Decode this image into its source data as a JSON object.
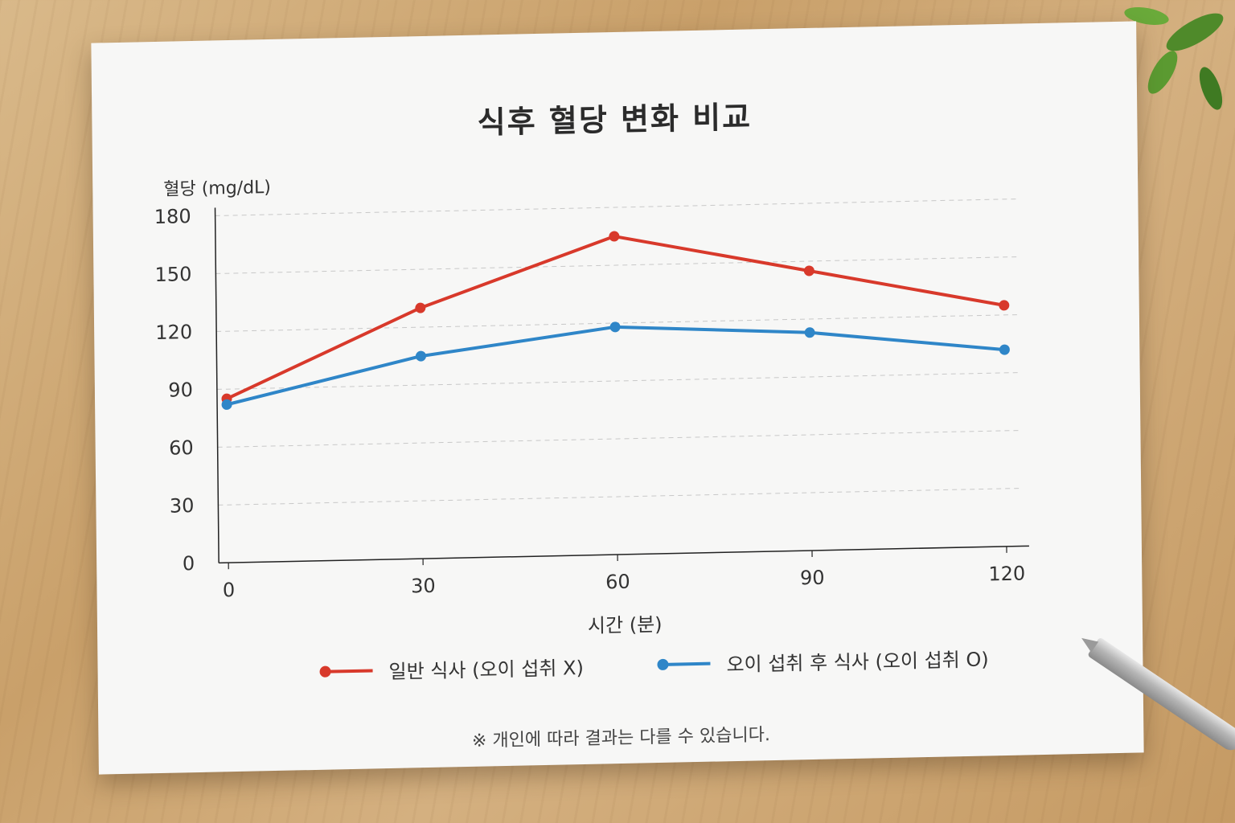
{
  "chart_data": {
    "type": "line",
    "title": "식후 혈당 변화 비교",
    "ylabel": "혈당 (mg/dL)",
    "xlabel": "시간 (분)",
    "x": [
      0,
      30,
      60,
      90,
      120
    ],
    "x_ticks": [
      "0",
      "30",
      "60",
      "90",
      "120"
    ],
    "y_ticks": [
      "0",
      "30",
      "60",
      "90",
      "120",
      "150",
      "180"
    ],
    "ylim": [
      0,
      180
    ],
    "xlim": [
      0,
      120
    ],
    "grid": true,
    "legend_position": "bottom",
    "series": [
      {
        "name": "일반 식사 (오이 섭취 X)",
        "color": "#d8392b",
        "values": [
          85,
          130,
          165,
          145,
          125
        ]
      },
      {
        "name": "오이 섭취 후 식사 (오이 섭취 O)",
        "color": "#2f86c8",
        "values": [
          82,
          105,
          118,
          113,
          102
        ]
      }
    ],
    "note": "※ 개인에 따라 결과는 다를 수 있습니다."
  }
}
